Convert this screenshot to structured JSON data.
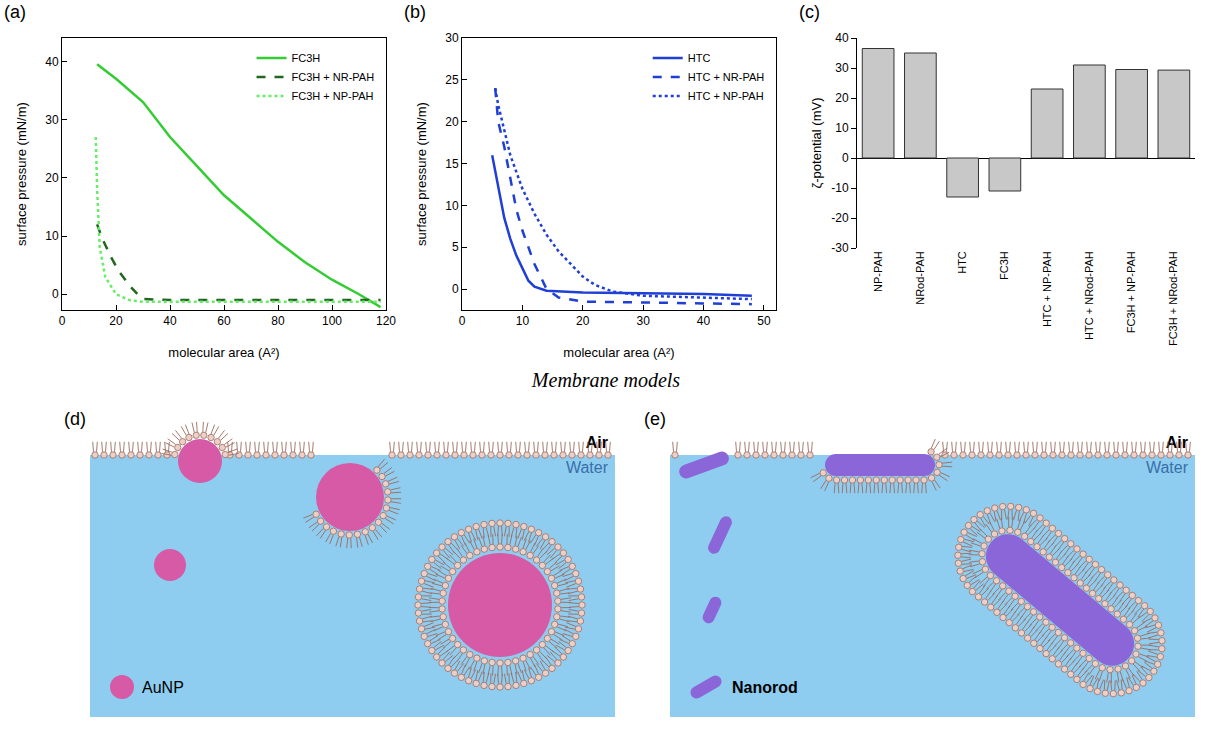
{
  "chart_data": [
    {
      "type": "line",
      "title": "(a)",
      "x_label": "molecular area (A²)",
      "y_label": "surface pressure (mN/m)",
      "xlim": [
        0,
        120
      ],
      "xticks": [
        0,
        20,
        40,
        60,
        80,
        100,
        120
      ],
      "ylim": [
        -2.7,
        44
      ],
      "yticks": [
        0,
        10,
        20,
        30,
        40
      ],
      "grid": false,
      "legend": "upper right",
      "series": [
        {
          "name": "FC3H",
          "color": "#33cc33",
          "line_style": "solid",
          "x": [
            13,
            20,
            30,
            40,
            50,
            60,
            70,
            80,
            90,
            100,
            110,
            118
          ],
          "values": [
            39.5,
            37,
            33,
            27,
            22,
            17,
            13,
            9,
            5.5,
            2.5,
            0,
            -2.2
          ]
        },
        {
          "name": "FC3H + NR-PAH",
          "color": "#226622",
          "line_style": "dash",
          "x": [
            13,
            15,
            18,
            21,
            25,
            28,
            30,
            40,
            60,
            80,
            100,
            118
          ],
          "values": [
            12,
            9.5,
            6.5,
            4,
            1.5,
            0,
            -0.8,
            -1,
            -1,
            -1,
            -1,
            -1
          ]
        },
        {
          "name": "FC3H + NP-PAH",
          "color": "#66ee66",
          "line_style": "dot",
          "x": [
            12.5,
            13,
            14,
            16,
            20,
            25,
            30,
            50,
            70,
            90,
            110,
            118
          ],
          "values": [
            27,
            18,
            8,
            3,
            0,
            -1,
            -1.3,
            -1.3,
            -1.3,
            -1.3,
            -1.3,
            -1.3
          ]
        }
      ]
    },
    {
      "type": "line",
      "title": "(b)",
      "x_label": "molecular area (A²)",
      "y_label": "surface pressure (mN/m)",
      "xlim": [
        0,
        52
      ],
      "xticks": [
        0,
        10,
        20,
        30,
        40,
        50
      ],
      "ylim": [
        -2.5,
        30
      ],
      "yticks": [
        0,
        5,
        10,
        15,
        20,
        25,
        30
      ],
      "grid": false,
      "legend": "upper right",
      "series": [
        {
          "name": "HTC",
          "color": "#1f3fd6",
          "line_style": "solid",
          "x": [
            5,
            6,
            7,
            8,
            9,
            10,
            11,
            12,
            14,
            20,
            30,
            40,
            48
          ],
          "values": [
            16,
            12,
            8.5,
            6,
            4,
            2.5,
            1,
            0.3,
            -0.2,
            -0.4,
            -0.5,
            -0.6,
            -0.8
          ]
        },
        {
          "name": "HTC + NR-PAH",
          "color": "#1f3fd6",
          "line_style": "dash",
          "x": [
            5.5,
            6,
            7,
            8,
            9,
            10,
            11,
            12,
            13,
            14,
            16,
            20,
            30,
            48
          ],
          "values": [
            24,
            20,
            17,
            13,
            9.5,
            7,
            5,
            3,
            1.5,
            0,
            -1,
            -1.5,
            -1.6,
            -1.8
          ]
        },
        {
          "name": "HTC + NP-PAH",
          "color": "#1f3fd6",
          "line_style": "dot",
          "x": [
            5.5,
            6,
            7,
            8,
            10,
            12,
            14,
            16,
            18,
            20,
            22,
            25,
            30,
            40,
            48
          ],
          "values": [
            24,
            22,
            19,
            16,
            12,
            9,
            6.5,
            4.5,
            3,
            1.5,
            0.5,
            -0.3,
            -0.8,
            -1,
            -1.2
          ]
        }
      ]
    },
    {
      "type": "bar",
      "title": "(c)",
      "y_label": "ζ-potential (mV)",
      "categories": [
        "NP-PAH",
        "NRod-PAH",
        "HTC",
        "FC3H",
        "HTC + NP-PAH",
        "HTC + NRod-PAH",
        "FC3H + NP-PAH",
        "FC3H + NRod-PAH"
      ],
      "values": [
        36.5,
        35,
        -13,
        -11,
        23,
        31,
        29.5,
        29.3
      ],
      "color": "#c8c8c8",
      "ylim": [
        -30,
        40
      ],
      "yticks": [
        -30,
        -20,
        -10,
        0,
        10,
        20,
        30,
        40
      ],
      "grid": false
    }
  ],
  "diagram": {
    "title": "Membrane models",
    "panels": [
      {
        "label": "(d)",
        "air": "Air",
        "water": "Water",
        "particle": "AuNP"
      },
      {
        "label": "(e)",
        "air": "Air",
        "water": "Water",
        "particle": "Nanorod"
      }
    ]
  }
}
